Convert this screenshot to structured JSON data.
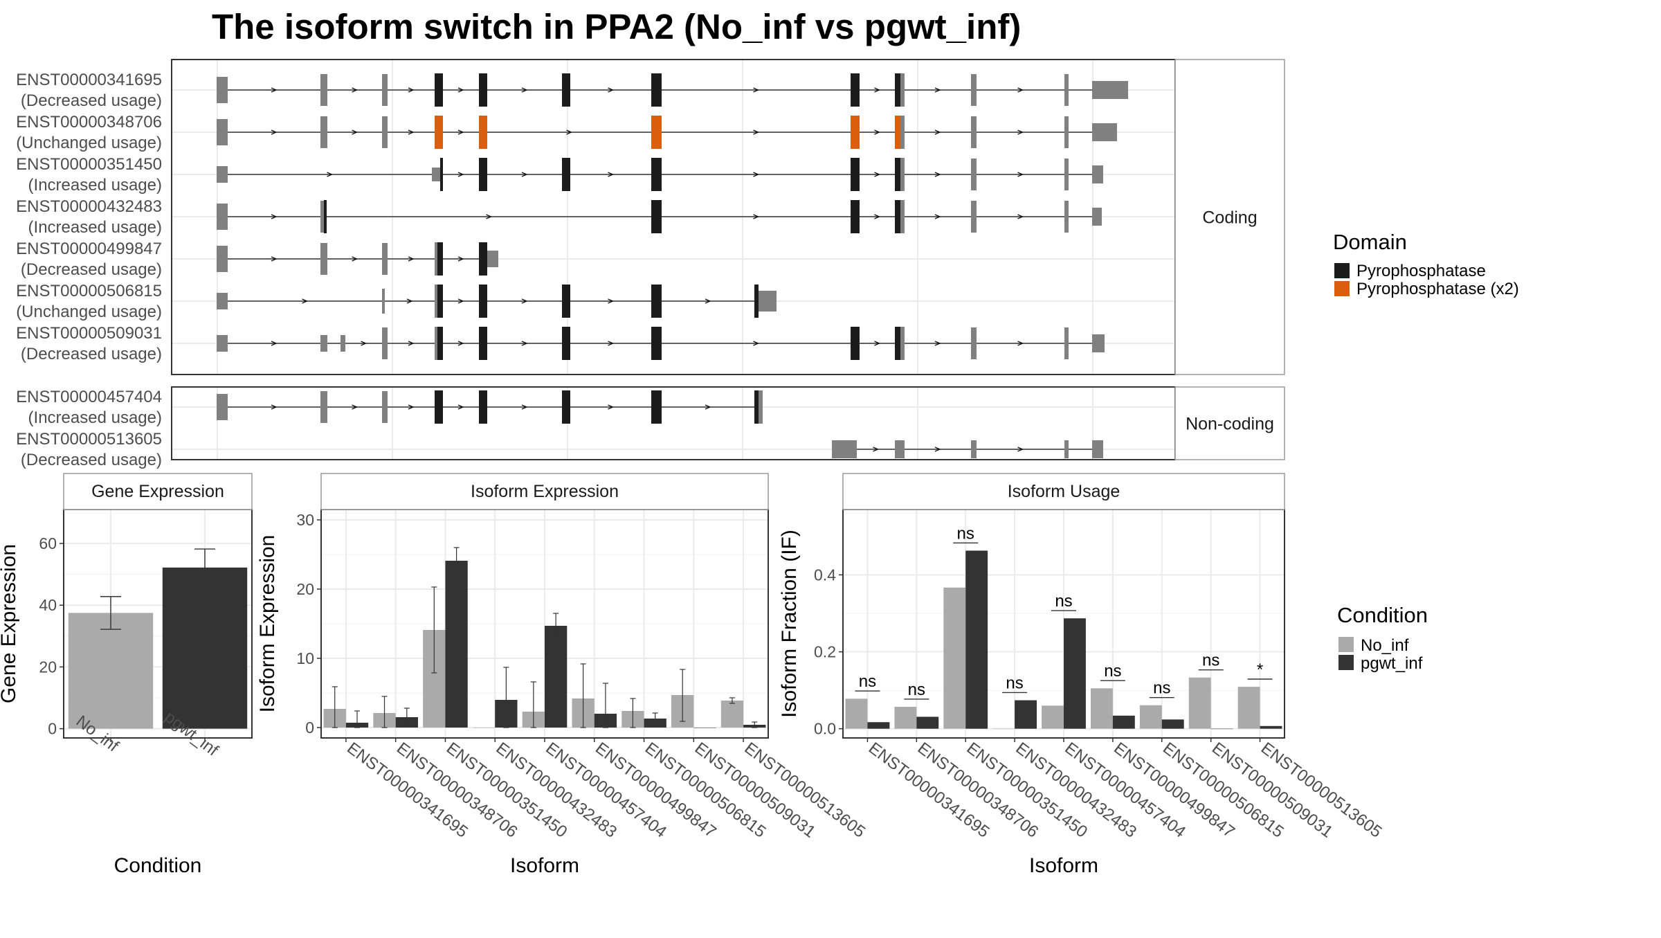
{
  "title": "The isoform switch in PPA2 (No_inf vs pgwt_inf)",
  "colors": {
    "pyrophosphatase": "#1c1c1c",
    "pyrophosphatase_x2": "#d95f0e",
    "utr": "#808080",
    "no_inf": "#aaaaaa",
    "pgwt_inf": "#333333",
    "grid": "#ebebeb",
    "panel_border": "#333333",
    "strip_fill": "#ffffff"
  },
  "structure": {
    "strips": {
      "coding": "Coding",
      "noncoding": "Non-coding"
    },
    "transcripts": [
      {
        "id": "ENST00000341695",
        "usage": "(Decreased usage)",
        "group": "coding"
      },
      {
        "id": "ENST00000348706",
        "usage": "(Unchanged usage)",
        "group": "coding"
      },
      {
        "id": "ENST00000351450",
        "usage": "(Increased usage)",
        "group": "coding"
      },
      {
        "id": "ENST00000432483",
        "usage": "(Increased usage)",
        "group": "coding"
      },
      {
        "id": "ENST00000499847",
        "usage": "(Decreased usage)",
        "group": "coding"
      },
      {
        "id": "ENST00000506815",
        "usage": "(Unchanged usage)",
        "group": "coding"
      },
      {
        "id": "ENST00000509031",
        "usage": "(Decreased usage)",
        "group": "coding"
      },
      {
        "id": "ENST00000457404",
        "usage": "(Increased usage)",
        "group": "noncoding"
      },
      {
        "id": "ENST00000513605",
        "usage": "(Decreased usage)",
        "group": "noncoding"
      }
    ],
    "legend": {
      "title": "Domain",
      "items": [
        {
          "label": "Pyrophosphatase",
          "color_key": "pyrophosphatase"
        },
        {
          "label": "Pyrophosphatase (x2)",
          "color_key": "pyrophosphatase_x2"
        }
      ]
    }
  },
  "chart_data": [
    {
      "type": "bar",
      "panel": "gene_expression",
      "strip": "Gene Expression",
      "xlabel": "Condition",
      "ylabel": "Gene Expression",
      "categories": [
        "No_inf",
        "pgwt_inf"
      ],
      "values": [
        37.5,
        52.2
      ],
      "errors": [
        [
          32.2,
          42.8
        ],
        [
          46.2,
          58.2
        ]
      ],
      "ylim": [
        -3,
        71
      ],
      "yticks": [
        0,
        20,
        40,
        60
      ],
      "grid": true
    },
    {
      "type": "bar",
      "panel": "isoform_expression",
      "strip": "Isoform Expression",
      "xlabel": "Isoform",
      "ylabel": "Isoform Expression",
      "categories": [
        "ENST00000341695",
        "ENST00000348706",
        "ENST00000351450",
        "ENST00000432483",
        "ENST00000457404",
        "ENST00000499847",
        "ENST00000506815",
        "ENST00000509031",
        "ENST00000513605"
      ],
      "series": [
        {
          "name": "No_inf",
          "values": [
            2.7,
            2.1,
            14.1,
            0.0,
            2.3,
            4.2,
            2.4,
            4.7,
            3.9
          ],
          "errors": [
            [
              0.0,
              5.9
            ],
            [
              0.0,
              4.5
            ],
            [
              7.9,
              20.3
            ],
            null,
            [
              0.0,
              6.6
            ],
            [
              0.0,
              9.2
            ],
            [
              0.0,
              4.2
            ],
            [
              0.9,
              8.4
            ],
            [
              3.5,
              4.3
            ]
          ]
        },
        {
          "name": "pgwt_inf",
          "values": [
            0.7,
            1.5,
            24.1,
            4.0,
            14.7,
            2.0,
            1.3,
            0.0,
            0.4
          ],
          "errors": [
            [
              0.0,
              2.4
            ],
            [
              0.2,
              2.8
            ],
            [
              22.2,
              26.0
            ],
            [
              0.0,
              8.7
            ],
            [
              13.0,
              16.5
            ],
            [
              0.0,
              6.4
            ],
            [
              0.3,
              2.1
            ],
            null,
            [
              0.0,
              0.8
            ]
          ]
        }
      ],
      "ylim": [
        -1.5,
        31.5
      ],
      "yticks": [
        0,
        10,
        20,
        30
      ],
      "grid": true
    },
    {
      "type": "bar",
      "panel": "isoform_usage",
      "strip": "Isoform Usage",
      "xlabel": "Isoform",
      "ylabel": "Isoform Fraction (IF)",
      "categories": [
        "ENST00000341695",
        "ENST00000348706",
        "ENST00000351450",
        "ENST00000432483",
        "ENST00000457404",
        "ENST00000499847",
        "ENST00000506815",
        "ENST00000509031",
        "ENST00000513605"
      ],
      "series": [
        {
          "name": "No_inf",
          "values": [
            0.078,
            0.057,
            0.367,
            0.0,
            0.06,
            0.105,
            0.061,
            0.133,
            0.109
          ]
        },
        {
          "name": "pgwt_inf",
          "values": [
            0.017,
            0.031,
            0.463,
            0.074,
            0.287,
            0.034,
            0.024,
            0.0,
            0.007
          ]
        }
      ],
      "significance": [
        "ns",
        "ns",
        "ns",
        "ns",
        "ns",
        "ns",
        "ns",
        "ns",
        "*"
      ],
      "ylim": [
        -0.024,
        0.57
      ],
      "yticks": [
        0.0,
        0.2,
        0.4
      ],
      "yticklabels": [
        "0.0",
        "0.2",
        "0.4"
      ],
      "grid": true
    }
  ],
  "condition_legend": {
    "title": "Condition",
    "items": [
      {
        "label": "No_inf",
        "color_key": "no_inf"
      },
      {
        "label": "pgwt_inf",
        "color_key": "pgwt_inf"
      }
    ]
  }
}
